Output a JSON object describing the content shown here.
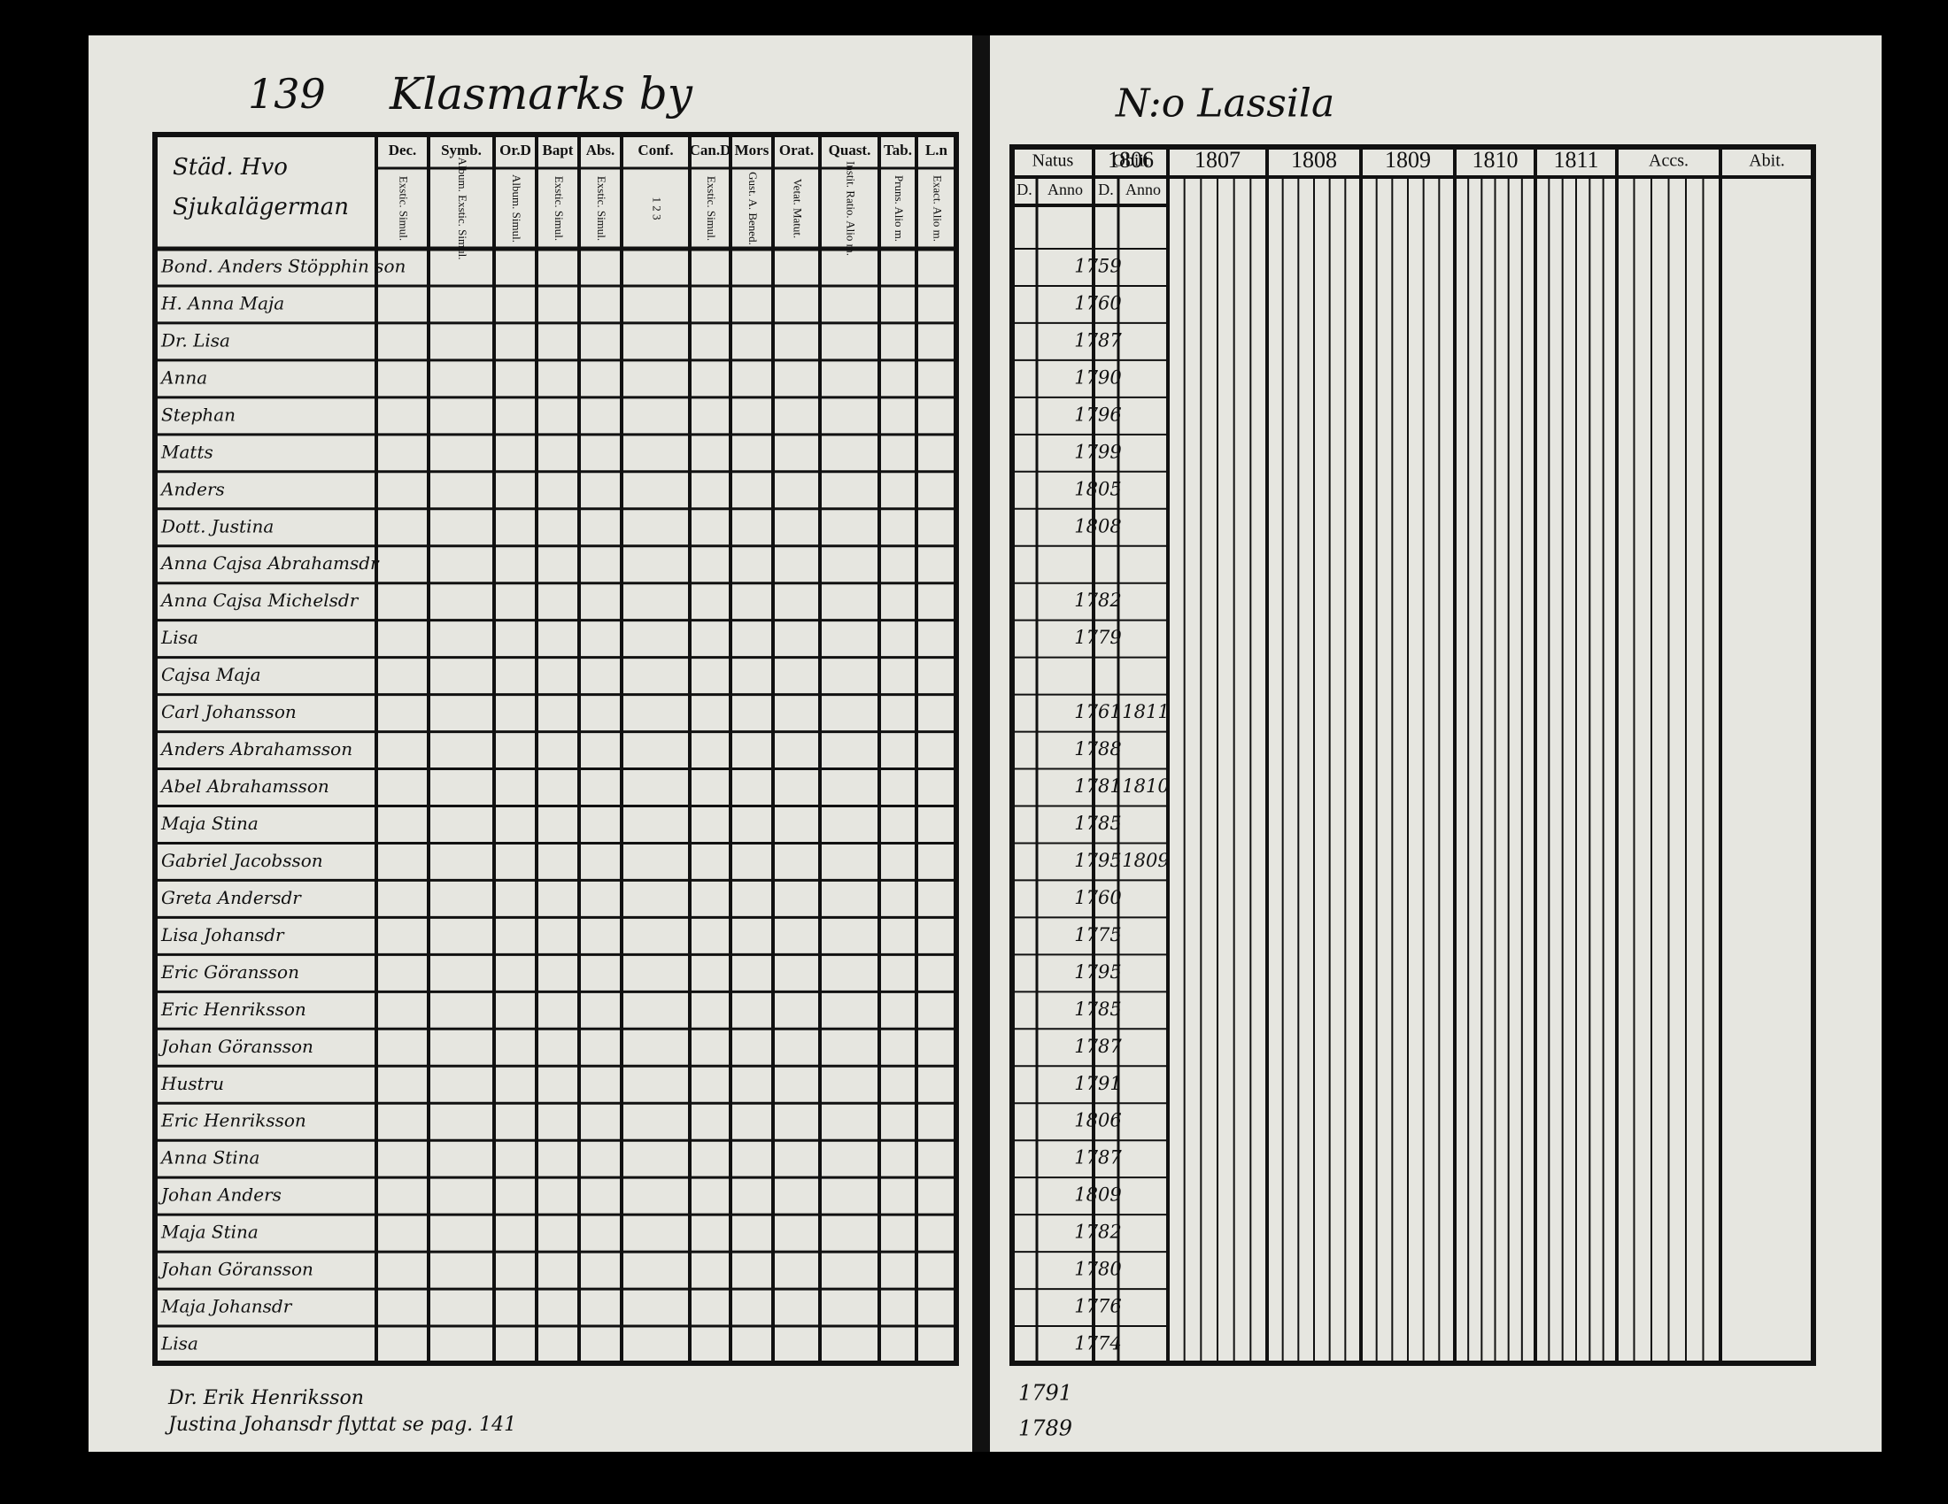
{
  "left_page": {
    "page_number": "139",
    "village": "Klasmarks by",
    "name_header": [
      "Städ. Hvo",
      "Sjukalägerman"
    ],
    "columns": [
      {
        "title": "Dec.",
        "sub": "Exstic. Simul."
      },
      {
        "title": "Symb.",
        "sub": "Album. Exstic. Simul."
      },
      {
        "title": "Or.D",
        "sub": "Album. Simul."
      },
      {
        "title": "Bapt",
        "sub": "Exstic. Simul."
      },
      {
        "title": "Abs.",
        "sub": "Exstic. Simul."
      },
      {
        "title": "Conf.",
        "sub": "1 2 3"
      },
      {
        "title": "Can.D",
        "sub": "Exstic. Simul."
      },
      {
        "title": "Mors",
        "sub": "Gust. A. Bened."
      },
      {
        "title": "Orat.",
        "sub": "Vetat. Matut."
      },
      {
        "title": "Quast.",
        "sub": "Instit. Ratio. Alio m."
      },
      {
        "title": "Tab.",
        "sub": "Pruns. Alio m."
      },
      {
        "title": "L.n",
        "sub": "Exact. Alio m."
      }
    ],
    "rows": [
      "Bond. Anders Stöpphin son",
      "H. Anna Maja",
      "Dr. Lisa",
      "Anna",
      "Stephan",
      "Matts",
      "Anders",
      "Dott. Justina",
      "Anna Cajsa Abrahamsdr",
      "Anna Cajsa Michelsdr",
      "Lisa",
      "Cajsa Maja",
      "Carl Johansson",
      "Anders Abrahamsson",
      "Abel Abrahamsson",
      "Maja Stina",
      "Gabriel Jacobsson",
      "Greta Andersdr",
      "Lisa Johansdr",
      "Eric Göransson",
      "Eric Henriksson",
      "Johan Göransson",
      "Hustru",
      "Eric Henriksson",
      "Anna Stina",
      "Johan Anders",
      "Maja Stina",
      "Johan Göransson",
      "Maja Johansdr",
      "Lisa"
    ],
    "notes": [
      "Dr. Erik Henriksson",
      "Justina Johansdr flyttat se pag. 141"
    ]
  },
  "right_page": {
    "farm": "N:o Lassila",
    "headers": [
      "Natus",
      "Obiit",
      "1806",
      "1807",
      "1808",
      "1809",
      "1810",
      "1811",
      "Accs.",
      "Abit."
    ],
    "subheaders": [
      "D.",
      "Anno",
      "D.",
      "Anno"
    ],
    "birth_years": [
      "1759",
      "1760",
      "1787",
      "1790",
      "1796",
      "1799",
      "1805",
      "1808",
      "",
      "1782",
      "1779",
      "",
      "1761",
      "1788",
      "1781",
      "1785",
      "1795",
      "1760",
      "1775",
      "1795",
      "1785",
      "1787",
      "1791",
      "1806",
      "1787",
      "1809",
      "1782",
      "1780",
      "1776",
      "1774"
    ],
    "death_years": {
      "12": "1811",
      "14": "1810",
      "16": "1809"
    },
    "notes": [
      "1791",
      "1789"
    ]
  }
}
